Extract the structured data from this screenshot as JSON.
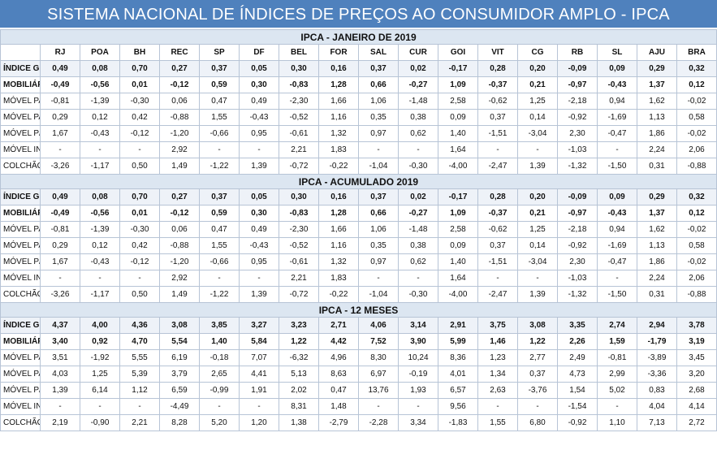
{
  "title": "SISTEMA NACIONAL DE ÍNDICES DE PREÇOS AO CONSUMIDOR AMPLO - IPCA",
  "columns": [
    "RJ",
    "POA",
    "BH",
    "REC",
    "SP",
    "DF",
    "BEL",
    "FOR",
    "SAL",
    "CUR",
    "GOI",
    "VIT",
    "CG",
    "RB",
    "SL",
    "AJU",
    "BRA"
  ],
  "sections": [
    {
      "title": "IPCA - JANEIRO DE 2019",
      "rows": [
        {
          "label": "ÍNDICE GERAL",
          "values": [
            "0,49",
            "0,08",
            "0,70",
            "0,27",
            "0,37",
            "0,05",
            "0,30",
            "0,16",
            "0,37",
            "0,02",
            "-0,17",
            "0,28",
            "0,20",
            "-0,09",
            "0,09",
            "0,29",
            "0,32"
          ]
        },
        {
          "label": "MOBILIÁRIO",
          "values": [
            "-0,49",
            "-0,56",
            "0,01",
            "-0,12",
            "0,59",
            "0,30",
            "-0,83",
            "1,28",
            "0,66",
            "-0,27",
            "1,09",
            "-0,37",
            "0,21",
            "-0,97",
            "-0,43",
            "1,37",
            "0,12"
          ]
        },
        {
          "label": "MÓVEL PARA SALA",
          "values": [
            "-0,81",
            "-1,39",
            "-0,30",
            "0,06",
            "0,47",
            "0,49",
            "-2,30",
            "1,66",
            "1,06",
            "-1,48",
            "2,58",
            "-0,62",
            "1,25",
            "-2,18",
            "0,94",
            "1,62",
            "-0,02"
          ]
        },
        {
          "label": "MÓVEL PARA QUARTO",
          "values": [
            "0,29",
            "0,12",
            "0,42",
            "-0,88",
            "1,55",
            "-0,43",
            "-0,52",
            "1,16",
            "0,35",
            "0,38",
            "0,09",
            "0,37",
            "0,14",
            "-0,92",
            "-1,69",
            "1,13",
            "0,58"
          ]
        },
        {
          "label": "MÓVEL P/ COPA E COZINHA",
          "values": [
            "1,67",
            "-0,43",
            "-0,12",
            "-1,20",
            "-0,66",
            "0,95",
            "-0,61",
            "1,32",
            "0,97",
            "0,62",
            "1,40",
            "-1,51",
            "-3,04",
            "2,30",
            "-0,47",
            "1,86",
            "-0,02"
          ]
        },
        {
          "label": "MÓVEL INFANTIL",
          "values": [
            "-",
            "-",
            "-",
            "2,92",
            "-",
            "-",
            "2,21",
            "1,83",
            "-",
            "-",
            "1,64",
            "-",
            "-",
            "-1,03",
            "-",
            "2,24",
            "2,06"
          ]
        },
        {
          "label": "COLCHÃO",
          "values": [
            "-3,26",
            "-1,17",
            "0,50",
            "1,49",
            "-1,22",
            "1,39",
            "-0,72",
            "-0,22",
            "-1,04",
            "-0,30",
            "-4,00",
            "-2,47",
            "1,39",
            "-1,32",
            "-1,50",
            "0,31",
            "-0,88"
          ]
        }
      ]
    },
    {
      "title": "IPCA - ACUMULADO 2019",
      "rows": [
        {
          "label": "ÍNDICE GERAL",
          "values": [
            "0,49",
            "0,08",
            "0,70",
            "0,27",
            "0,37",
            "0,05",
            "0,30",
            "0,16",
            "0,37",
            "0,02",
            "-0,17",
            "0,28",
            "0,20",
            "-0,09",
            "0,09",
            "0,29",
            "0,32"
          ]
        },
        {
          "label": "MOBILIÁRIO",
          "values": [
            "-0,49",
            "-0,56",
            "0,01",
            "-0,12",
            "0,59",
            "0,30",
            "-0,83",
            "1,28",
            "0,66",
            "-0,27",
            "1,09",
            "-0,37",
            "0,21",
            "-0,97",
            "-0,43",
            "1,37",
            "0,12"
          ]
        },
        {
          "label": "MÓVEL PARA SALA",
          "values": [
            "-0,81",
            "-1,39",
            "-0,30",
            "0,06",
            "0,47",
            "0,49",
            "-2,30",
            "1,66",
            "1,06",
            "-1,48",
            "2,58",
            "-0,62",
            "1,25",
            "-2,18",
            "0,94",
            "1,62",
            "-0,02"
          ]
        },
        {
          "label": "MÓVEL PARA QUARTO",
          "values": [
            "0,29",
            "0,12",
            "0,42",
            "-0,88",
            "1,55",
            "-0,43",
            "-0,52",
            "1,16",
            "0,35",
            "0,38",
            "0,09",
            "0,37",
            "0,14",
            "-0,92",
            "-1,69",
            "1,13",
            "0,58"
          ]
        },
        {
          "label": "MÓVEL P/ COPA E COZINHA",
          "values": [
            "1,67",
            "-0,43",
            "-0,12",
            "-1,20",
            "-0,66",
            "0,95",
            "-0,61",
            "1,32",
            "0,97",
            "0,62",
            "1,40",
            "-1,51",
            "-3,04",
            "2,30",
            "-0,47",
            "1,86",
            "-0,02"
          ]
        },
        {
          "label": "MÓVEL INFANTIL",
          "values": [
            "-",
            "-",
            "-",
            "2,92",
            "-",
            "-",
            "2,21",
            "1,83",
            "-",
            "-",
            "1,64",
            "-",
            "-",
            "-1,03",
            "-",
            "2,24",
            "2,06"
          ]
        },
        {
          "label": "COLCHÃO",
          "values": [
            "-3,26",
            "-1,17",
            "0,50",
            "1,49",
            "-1,22",
            "1,39",
            "-0,72",
            "-0,22",
            "-1,04",
            "-0,30",
            "-4,00",
            "-2,47",
            "1,39",
            "-1,32",
            "-1,50",
            "0,31",
            "-0,88"
          ]
        }
      ]
    },
    {
      "title": "IPCA - 12 MESES",
      "rows": [
        {
          "label": "ÍNDICE GERAL",
          "values": [
            "4,37",
            "4,00",
            "4,36",
            "3,08",
            "3,85",
            "3,27",
            "3,23",
            "2,71",
            "4,06",
            "3,14",
            "2,91",
            "3,75",
            "3,08",
            "3,35",
            "2,74",
            "2,94",
            "3,78"
          ]
        },
        {
          "label": "MOBILIÁRIO",
          "values": [
            "3,40",
            "0,92",
            "4,70",
            "5,54",
            "1,40",
            "5,84",
            "1,22",
            "4,42",
            "7,52",
            "3,90",
            "5,99",
            "1,46",
            "1,22",
            "2,26",
            "1,59",
            "-1,79",
            "3,19"
          ]
        },
        {
          "label": "MÓVEL PARA SALA",
          "values": [
            "3,51",
            "-1,92",
            "5,55",
            "6,19",
            "-0,18",
            "7,07",
            "-6,32",
            "4,96",
            "8,30",
            "10,24",
            "8,36",
            "1,23",
            "2,77",
            "2,49",
            "-0,81",
            "-3,89",
            "3,45"
          ]
        },
        {
          "label": "MÓVEL PARA QUARTO",
          "values": [
            "4,03",
            "1,25",
            "5,39",
            "3,79",
            "2,65",
            "4,41",
            "5,13",
            "8,63",
            "6,97",
            "-0,19",
            "4,01",
            "1,34",
            "0,37",
            "4,73",
            "2,99",
            "-3,36",
            "3,20"
          ]
        },
        {
          "label": "MÓVEL P/ COPA E COZINHA",
          "values": [
            "1,39",
            "6,14",
            "1,12",
            "6,59",
            "-0,99",
            "1,91",
            "2,02",
            "0,47",
            "13,76",
            "1,93",
            "6,57",
            "2,63",
            "-3,76",
            "1,54",
            "5,02",
            "0,83",
            "2,68"
          ]
        },
        {
          "label": "MÓVEL INFANTIL",
          "values": [
            "-",
            "-",
            "-",
            "-4,49",
            "-",
            "-",
            "8,31",
            "1,48",
            "-",
            "-",
            "9,56",
            "-",
            "-",
            "-1,54",
            "-",
            "4,04",
            "4,14"
          ]
        },
        {
          "label": "COLCHÃO",
          "values": [
            "2,19",
            "-0,90",
            "2,21",
            "8,28",
            "5,20",
            "1,20",
            "1,38",
            "-2,79",
            "-2,28",
            "3,34",
            "-1,83",
            "1,55",
            "6,80",
            "-0,92",
            "1,10",
            "7,13",
            "2,72"
          ]
        }
      ]
    }
  ]
}
